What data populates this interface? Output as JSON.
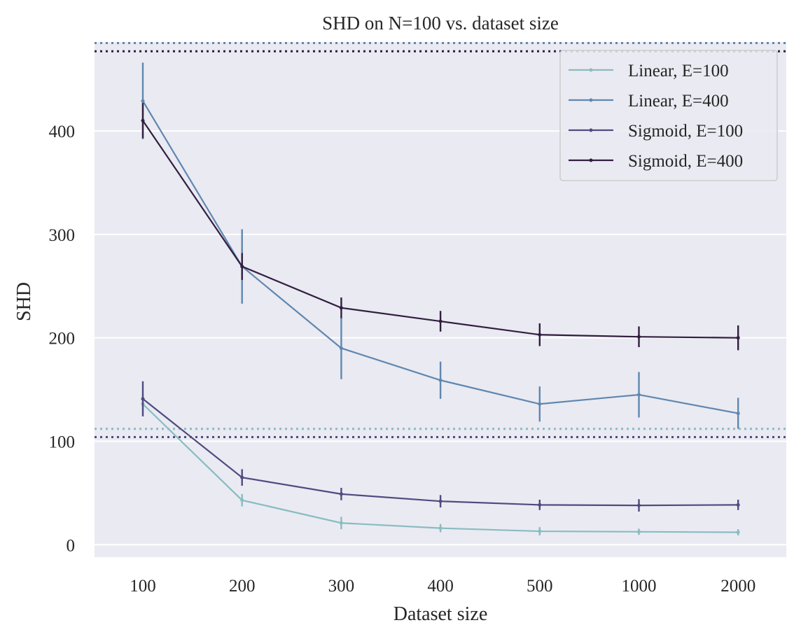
{
  "chart_data": {
    "type": "line",
    "title": "SHD on N=100 vs. dataset size",
    "xlabel": "Dataset size",
    "ylabel": "SHD",
    "categories": [
      "100",
      "200",
      "300",
      "400",
      "500",
      "1000",
      "2000"
    ],
    "ylim": [
      -12,
      486
    ],
    "yticks": [
      0,
      100,
      200,
      300,
      400
    ],
    "grid": true,
    "legend_position": "top-right",
    "series": [
      {
        "name": "Linear, E=100",
        "color": "#88bcc1",
        "values": [
          136,
          43,
          21,
          16,
          13,
          12.5,
          12
        ],
        "errors": [
          10,
          6,
          6,
          4,
          4,
          3,
          3
        ],
        "baseline": 112
      },
      {
        "name": "Linear, E=400",
        "color": "#5f87b0",
        "values": [
          429,
          269,
          190,
          159,
          136,
          145,
          127
        ],
        "errors": [
          37,
          36,
          30,
          18,
          17,
          22,
          15
        ],
        "baseline": 485
      },
      {
        "name": "Sigmoid, E=100",
        "color": "#4f4b80",
        "values": [
          141,
          65,
          49,
          42,
          38.5,
          38,
          38.5
        ],
        "errors": [
          17,
          8,
          6,
          6,
          5,
          6,
          5
        ],
        "baseline": 104
      },
      {
        "name": "Sigmoid, E=400",
        "color": "#311e3f",
        "values": [
          410,
          269,
          229,
          216,
          203,
          201,
          200
        ],
        "errors": [
          17,
          13,
          10,
          10,
          11,
          10,
          12
        ],
        "baseline": 477
      }
    ]
  }
}
